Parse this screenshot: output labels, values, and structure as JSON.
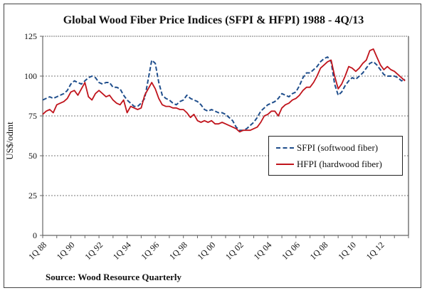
{
  "chart_data": {
    "type": "line",
    "title": "Global Wood Fiber Price Indices (SFPI & HFPI) 1988 - 4Q/13",
    "xlabel": "",
    "ylabel": "US$/odmt",
    "ylim": [
      0,
      125
    ],
    "yticks": [
      0,
      25,
      50,
      75,
      100,
      125
    ],
    "ytick_labels": [
      "0",
      "25",
      "50",
      "75",
      "100",
      "125"
    ],
    "grid": "horizontal dotted",
    "x_start_year": 1988,
    "quarters": 104,
    "xtick_labels": [
      "1Q 88",
      "1Q 90",
      "1Q 92",
      "1Q 94",
      "1Q 96",
      "1Q 98",
      "1Q 00",
      "1Q 02",
      "1Q 04",
      "1Q 06",
      "1Q 08",
      "1Q 10",
      "1Q 12"
    ],
    "xtick_quarter_index": [
      0,
      8,
      16,
      24,
      32,
      40,
      48,
      56,
      64,
      72,
      80,
      88,
      96
    ],
    "legend_position": "center-right",
    "series": [
      {
        "name": "SFPI (softwood fiber)",
        "color": "#1f4e8c",
        "style": "dashed",
        "values": [
          85,
          86,
          87,
          86,
          87,
          88,
          89,
          91,
          95,
          97,
          96,
          95,
          97,
          99,
          100,
          99,
          96,
          95,
          96,
          96,
          93,
          93,
          92,
          88,
          85,
          83,
          81,
          81,
          83,
          86,
          98,
          110,
          108,
          96,
          88,
          86,
          85,
          83,
          82,
          84,
          85,
          88,
          86,
          85,
          84,
          82,
          79,
          78,
          79,
          78,
          77,
          77,
          76,
          74,
          72,
          68,
          66,
          66,
          67,
          69,
          71,
          74,
          78,
          80,
          82,
          83,
          84,
          86,
          89,
          88,
          87,
          89,
          90,
          94,
          99,
          102,
          102,
          104,
          106,
          109,
          111,
          112,
          109,
          95,
          88,
          90,
          94,
          97,
          99,
          98,
          100,
          102,
          105,
          108,
          109,
          107,
          104,
          101,
          100,
          100,
          100,
          99,
          97,
          98
        ]
      },
      {
        "name": "HFPI (hardwood fiber)",
        "color": "#c0141c",
        "style": "solid",
        "values": [
          76,
          78,
          79,
          77,
          82,
          83,
          84,
          86,
          90,
          91,
          88,
          92,
          96,
          87,
          85,
          89,
          91,
          89,
          87,
          88,
          85,
          83,
          82,
          85,
          77,
          81,
          80,
          79,
          80,
          88,
          92,
          96,
          92,
          86,
          82,
          81,
          81,
          80,
          80,
          79,
          79,
          77,
          74,
          76,
          72,
          71,
          72,
          71,
          72,
          70,
          70,
          71,
          70,
          69,
          68,
          67,
          65,
          66,
          66,
          66,
          67,
          68,
          71,
          75,
          76,
          78,
          78,
          75,
          80,
          82,
          83,
          85,
          86,
          88,
          91,
          93,
          93,
          96,
          100,
          105,
          107,
          109,
          110,
          100,
          92,
          95,
          100,
          106,
          105,
          103,
          105,
          108,
          110,
          116,
          117,
          112,
          107,
          104,
          106,
          104,
          103,
          101,
          99,
          97
        ]
      }
    ]
  },
  "source": "Source: Wood Resource Quarterly"
}
